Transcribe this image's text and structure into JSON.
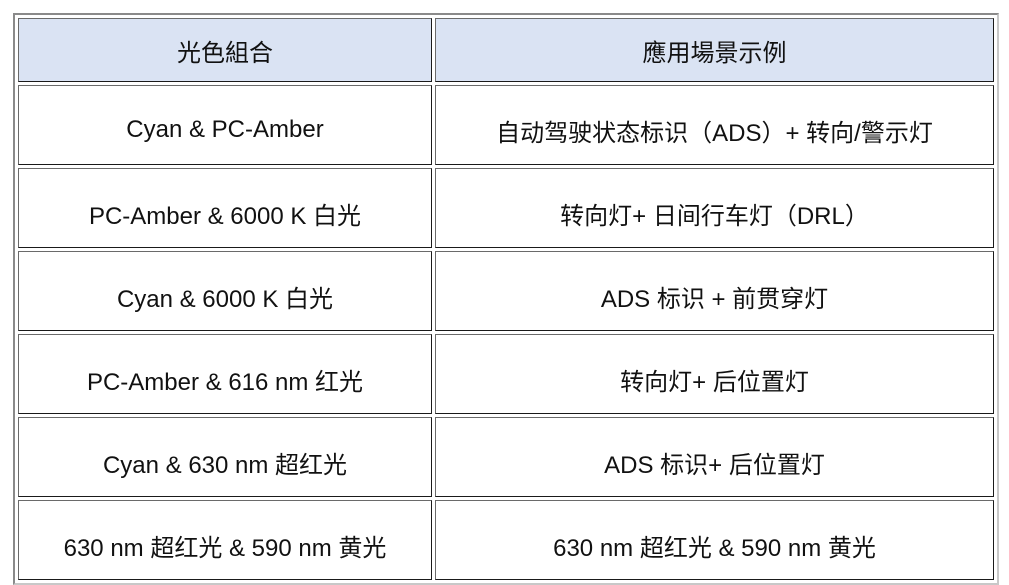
{
  "table": {
    "headers": [
      "光色組合",
      "應用場景示例"
    ],
    "rows": [
      [
        "Cyan & PC-Amber",
        "自动驾驶状态标识（ADS）+  转向/警示灯"
      ],
      [
        "PC-Amber & 6000 K  白光",
        "转向灯+  日间行车灯（DRL）"
      ],
      [
        "Cyan & 6000 K  白光",
        "ADS  标识  +  前贯穿灯"
      ],
      [
        "PC-Amber & 616 nm  红光",
        "转向灯+  后位置灯"
      ],
      [
        "Cyan & 630 nm   超红光",
        "ADS  标识+ 后位置灯"
      ],
      [
        "630 nm  超红光  & 590 nm  黄光",
        "630 nm  超红光  & 590 nm  黄光"
      ]
    ]
  },
  "colors": {
    "header_bg": "#dae3f3"
  }
}
